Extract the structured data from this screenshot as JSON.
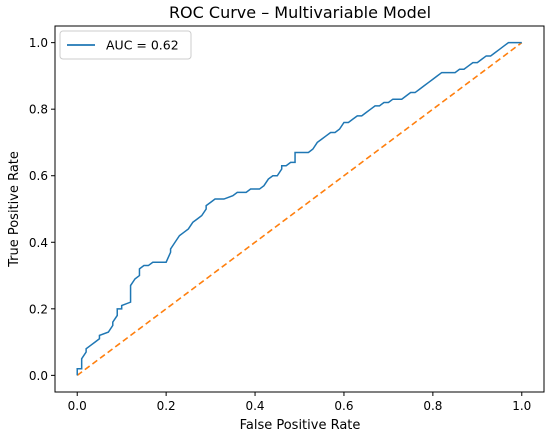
{
  "chart_data": {
    "type": "line",
    "title": "ROC Curve – Multivariable Model",
    "xlabel": "False Positive Rate",
    "ylabel": "True Positive Rate",
    "xlim": [
      -0.05,
      1.05
    ],
    "ylim": [
      -0.05,
      1.05
    ],
    "xticks": [
      "0.0",
      "0.2",
      "0.4",
      "0.6",
      "0.8",
      "1.0"
    ],
    "yticks": [
      "0.0",
      "0.2",
      "0.4",
      "0.6",
      "0.8",
      "1.0"
    ],
    "grid": false,
    "legend_position": "upper left",
    "series": [
      {
        "name": "AUC = 0.62",
        "color": "#1f77b4",
        "style": "solid",
        "x": [
          0.0,
          0.0,
          0.01,
          0.01,
          0.02,
          0.02,
          0.03,
          0.04,
          0.05,
          0.05,
          0.07,
          0.08,
          0.08,
          0.09,
          0.09,
          0.1,
          0.1,
          0.12,
          0.12,
          0.13,
          0.14,
          0.14,
          0.15,
          0.16,
          0.17,
          0.18,
          0.2,
          0.21,
          0.21,
          0.22,
          0.23,
          0.24,
          0.25,
          0.26,
          0.27,
          0.28,
          0.29,
          0.29,
          0.3,
          0.31,
          0.32,
          0.33,
          0.35,
          0.36,
          0.38,
          0.39,
          0.41,
          0.42,
          0.43,
          0.44,
          0.45,
          0.46,
          0.46,
          0.47,
          0.48,
          0.49,
          0.49,
          0.5,
          0.52,
          0.53,
          0.54,
          0.55,
          0.56,
          0.57,
          0.58,
          0.59,
          0.6,
          0.61,
          0.62,
          0.63,
          0.64,
          0.65,
          0.66,
          0.67,
          0.68,
          0.69,
          0.7,
          0.71,
          0.73,
          0.74,
          0.75,
          0.76,
          0.77,
          0.78,
          0.79,
          0.8,
          0.81,
          0.82,
          0.84,
          0.85,
          0.86,
          0.87,
          0.88,
          0.89,
          0.9,
          0.91,
          0.92,
          0.93,
          0.94,
          0.95,
          0.96,
          0.97,
          1.0
        ],
        "y": [
          0.0,
          0.02,
          0.02,
          0.05,
          0.07,
          0.08,
          0.09,
          0.1,
          0.11,
          0.12,
          0.13,
          0.15,
          0.16,
          0.18,
          0.2,
          0.2,
          0.21,
          0.22,
          0.27,
          0.29,
          0.3,
          0.32,
          0.33,
          0.33,
          0.34,
          0.34,
          0.34,
          0.37,
          0.38,
          0.4,
          0.42,
          0.43,
          0.44,
          0.46,
          0.47,
          0.48,
          0.5,
          0.51,
          0.52,
          0.53,
          0.53,
          0.53,
          0.54,
          0.55,
          0.55,
          0.56,
          0.56,
          0.57,
          0.59,
          0.6,
          0.6,
          0.62,
          0.63,
          0.63,
          0.64,
          0.64,
          0.67,
          0.67,
          0.67,
          0.68,
          0.7,
          0.71,
          0.72,
          0.73,
          0.73,
          0.74,
          0.76,
          0.76,
          0.77,
          0.78,
          0.78,
          0.79,
          0.8,
          0.81,
          0.81,
          0.82,
          0.82,
          0.83,
          0.83,
          0.84,
          0.85,
          0.85,
          0.86,
          0.87,
          0.88,
          0.89,
          0.9,
          0.91,
          0.91,
          0.91,
          0.92,
          0.92,
          0.93,
          0.94,
          0.94,
          0.95,
          0.96,
          0.96,
          0.97,
          0.98,
          0.99,
          1.0,
          1.0
        ]
      },
      {
        "name": "",
        "color": "#ff7f0e",
        "style": "dashed",
        "x": [
          0.0,
          1.0
        ],
        "y": [
          0.0,
          1.0
        ]
      }
    ]
  }
}
